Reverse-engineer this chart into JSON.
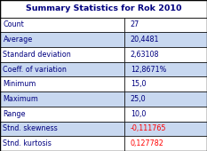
{
  "title": "Summary Statistics for Rok 2010",
  "rows": [
    [
      "Count",
      "27"
    ],
    [
      "Average",
      "20,4481"
    ],
    [
      "Standard deviation",
      "2,63108"
    ],
    [
      "Coeff. of variation",
      "12,8671%"
    ],
    [
      "Minimum",
      "15,0"
    ],
    [
      "Maximum",
      "25,0"
    ],
    [
      "Range",
      "10,0"
    ],
    [
      "Stnd. skewness",
      "-0,111765"
    ],
    [
      "Stnd. kurtosis",
      "0,127782"
    ]
  ],
  "red_rows": [
    7,
    8
  ],
  "title_color": "#000080",
  "title_bg": "#ffffff",
  "row_bg_white": "#ffffff",
  "row_bg_blue": "#c8d8f0",
  "border_color": "#000000",
  "text_color_normal": "#000080",
  "text_color_red": "#ff0000",
  "col_split": 0.6,
  "title_fontsize": 6.8,
  "cell_fontsize": 5.8
}
